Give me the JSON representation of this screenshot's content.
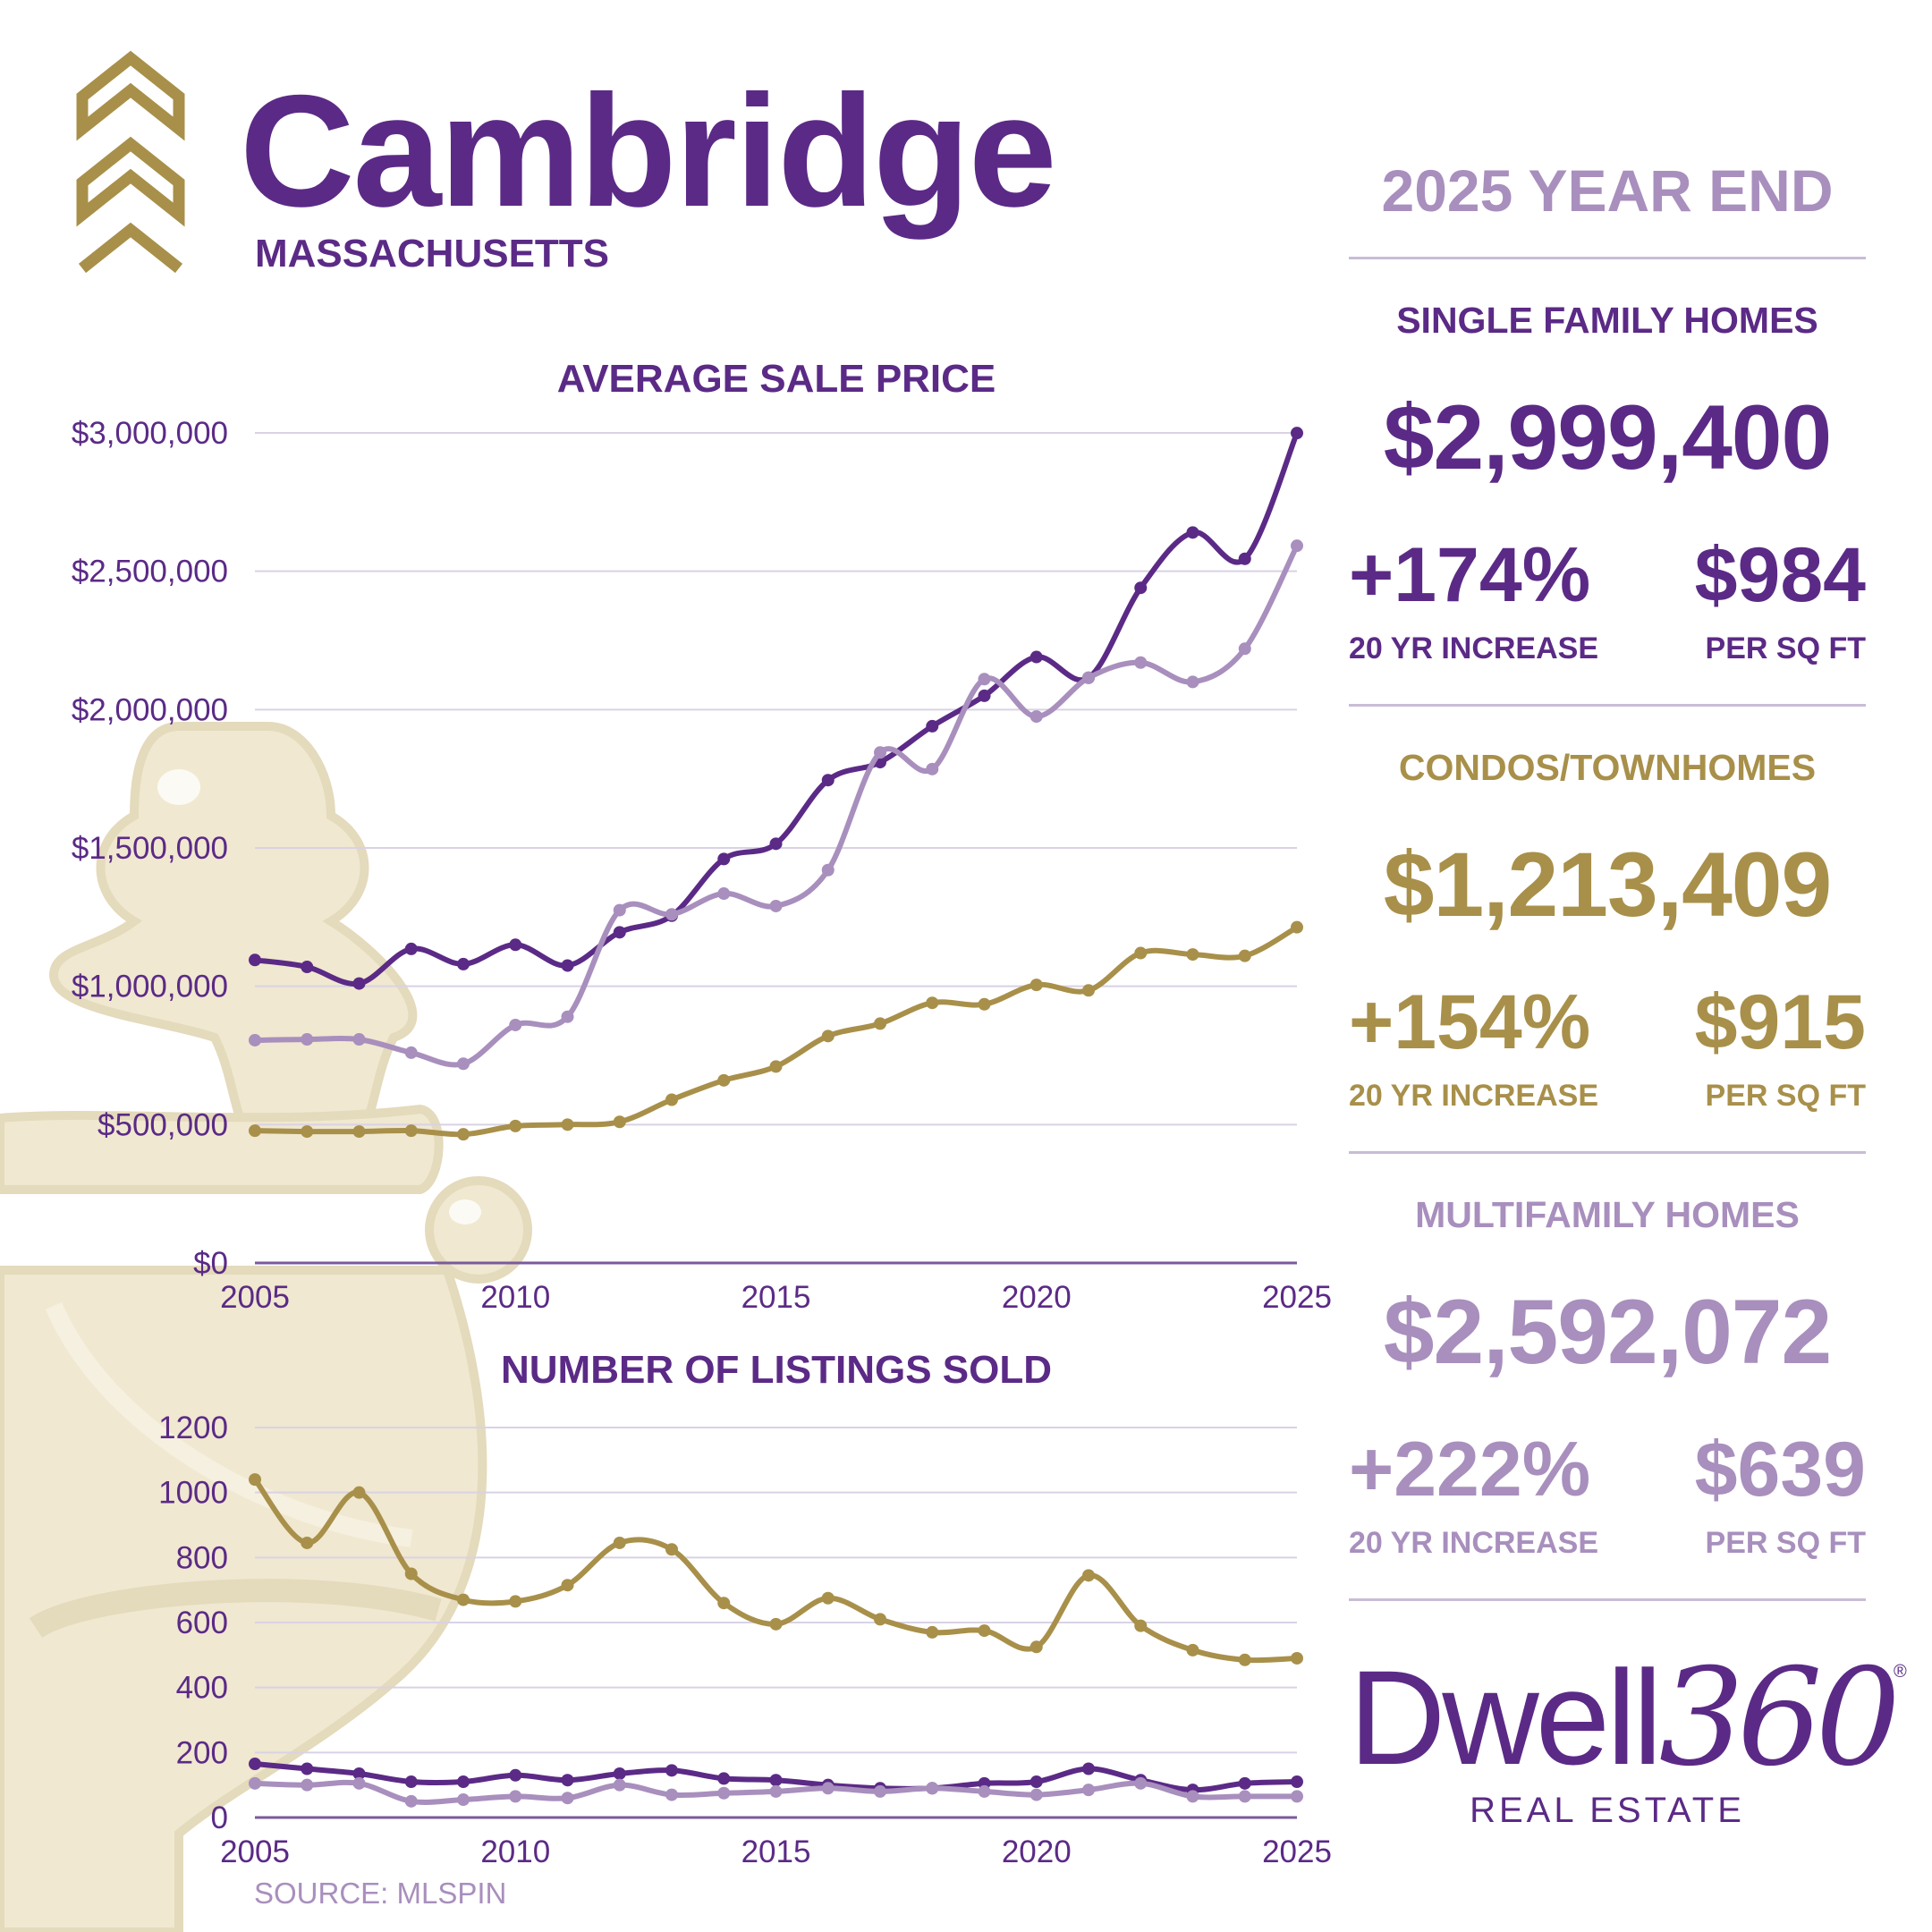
{
  "header": {
    "city": "Cambridge",
    "state": "MASSACHUSETTS"
  },
  "summary": {
    "period": "2025 YEAR END",
    "sections": [
      {
        "title": "SINGLE FAMILY HOMES",
        "avg_price": "$2,999,400",
        "increase": "+174%",
        "increase_label": "20 YR INCREASE",
        "per_sqft": "$984",
        "per_sqft_label": "PER SQ FT",
        "color": "#5b2a86"
      },
      {
        "title": "CONDOS/TOWNHOMES",
        "avg_price": "$1,213,409",
        "increase": "+154%",
        "increase_label": "20 YR INCREASE",
        "per_sqft": "$915",
        "per_sqft_label": "PER SQ FT",
        "color": "#a8904a"
      },
      {
        "title": "MULTIFAMILY HOMES",
        "avg_price": "$2,592,072",
        "increase": "+222%",
        "increase_label": "20 YR INCREASE",
        "per_sqft": "$639",
        "per_sqft_label": "PER SQ FT",
        "color": "#a88fbd"
      }
    ]
  },
  "brand": {
    "name_text": "Dwell",
    "name_number": "360",
    "registered": "®",
    "tagline": "REAL ESTATE"
  },
  "source": "SOURCE: MLSPIN",
  "colors": {
    "single_family": "#5b2a86",
    "condo": "#a8904a",
    "multifamily": "#a88fbd",
    "grid": "#d9d2e4",
    "knocker": "#efe6cc",
    "chevron": "#a8904a"
  },
  "decor": {
    "logo": "chevrons-icon",
    "background": "door-knocker-illustration"
  },
  "chart_data": [
    {
      "type": "line",
      "title": "AVERAGE SALE PRICE",
      "x": [
        2005,
        2006,
        2007,
        2008,
        2009,
        2010,
        2011,
        2012,
        2013,
        2014,
        2015,
        2016,
        2017,
        2018,
        2019,
        2020,
        2021,
        2022,
        2023,
        2024,
        2025
      ],
      "xticks": [
        "2005",
        "2010",
        "2015",
        "2020",
        "2025"
      ],
      "yticks": [
        "$0",
        "$500,000",
        "$1,000,000",
        "$1,500,000",
        "$2,000,000",
        "$2,500,000",
        "$3,000,000"
      ],
      "ylim": [
        0,
        3000000
      ],
      "grid": true,
      "series": [
        {
          "key": "single_family",
          "values": [
            1095000,
            1070000,
            1010000,
            1135000,
            1080000,
            1150000,
            1075000,
            1195000,
            1255000,
            1460000,
            1515000,
            1745000,
            1810000,
            1940000,
            2050000,
            2190000,
            2115000,
            2440000,
            2640000,
            2545000,
            2999400
          ]
        },
        {
          "key": "multifamily",
          "values": [
            805000,
            808000,
            808000,
            760000,
            720000,
            860000,
            890000,
            1275000,
            1260000,
            1335000,
            1290000,
            1420000,
            1845000,
            1785000,
            2110000,
            1975000,
            2115000,
            2170000,
            2100000,
            2220000,
            2592072
          ]
        },
        {
          "key": "condo",
          "values": [
            478000,
            475000,
            475000,
            478000,
            465000,
            495000,
            500000,
            510000,
            590000,
            660000,
            710000,
            820000,
            865000,
            940000,
            935000,
            1005000,
            985000,
            1120000,
            1115000,
            1110000,
            1213409
          ]
        }
      ]
    },
    {
      "type": "line",
      "title": "NUMBER OF LISTINGS SOLD",
      "x": [
        2005,
        2006,
        2007,
        2008,
        2009,
        2010,
        2011,
        2012,
        2013,
        2014,
        2015,
        2016,
        2017,
        2018,
        2019,
        2020,
        2021,
        2022,
        2023,
        2024,
        2025
      ],
      "xticks": [
        "2005",
        "2010",
        "2015",
        "2020",
        "2025"
      ],
      "yticks": [
        "0",
        "200",
        "400",
        "600",
        "800",
        "1000",
        "1200"
      ],
      "ylim": [
        0,
        1200
      ],
      "grid": true,
      "series": [
        {
          "key": "condo",
          "values": [
            1040,
            845,
            1000,
            750,
            670,
            665,
            715,
            845,
            825,
            660,
            595,
            675,
            610,
            570,
            575,
            525,
            745,
            590,
            515,
            485,
            490
          ]
        },
        {
          "key": "single_family",
          "values": [
            165,
            150,
            135,
            110,
            110,
            130,
            115,
            135,
            145,
            120,
            115,
            100,
            90,
            90,
            105,
            110,
            150,
            115,
            85,
            105,
            110
          ]
        },
        {
          "key": "multifamily",
          "values": [
            105,
            100,
            105,
            50,
            55,
            65,
            60,
            100,
            70,
            75,
            80,
            90,
            80,
            90,
            80,
            70,
            85,
            105,
            65,
            65,
            65
          ]
        }
      ]
    }
  ]
}
